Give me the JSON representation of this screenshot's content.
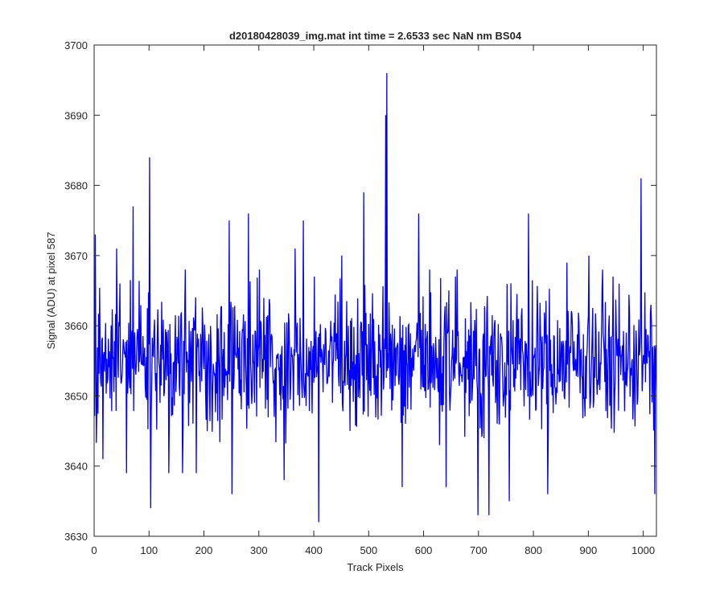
{
  "chart_data": {
    "type": "line",
    "title": "d20180428039_img.mat int time = 2.6533 sec  NaN nm BS04",
    "xlabel": "Track Pixels",
    "ylabel": "Signal (ADU) at pixel 587",
    "xlim": [
      0,
      1024
    ],
    "ylim": [
      3630,
      3700
    ],
    "xticks": [
      0,
      100,
      200,
      300,
      400,
      500,
      600,
      700,
      800,
      900,
      1000
    ],
    "yticks": [
      3630,
      3640,
      3650,
      3660,
      3670,
      3680,
      3690,
      3700
    ],
    "grid": false,
    "legend": "none",
    "series_color": "#0000ff",
    "baseline_mean": 3655,
    "noise_amplitude": 8,
    "num_points": 1024,
    "highlights": [
      {
        "x": 1,
        "y": 3673
      },
      {
        "x": 15,
        "y": 3641
      },
      {
        "x": 40,
        "y": 3671
      },
      {
        "x": 58,
        "y": 3639
      },
      {
        "x": 70,
        "y": 3677
      },
      {
        "x": 100,
        "y": 3684
      },
      {
        "x": 102,
        "y": 3634
      },
      {
        "x": 135,
        "y": 3639
      },
      {
        "x": 160,
        "y": 3639
      },
      {
        "x": 165,
        "y": 3668
      },
      {
        "x": 185,
        "y": 3639
      },
      {
        "x": 245,
        "y": 3675
      },
      {
        "x": 250,
        "y": 3636
      },
      {
        "x": 280,
        "y": 3676
      },
      {
        "x": 300,
        "y": 3668
      },
      {
        "x": 345,
        "y": 3638
      },
      {
        "x": 365,
        "y": 3671
      },
      {
        "x": 380,
        "y": 3675
      },
      {
        "x": 400,
        "y": 3667
      },
      {
        "x": 408,
        "y": 3632
      },
      {
        "x": 450,
        "y": 3670
      },
      {
        "x": 490,
        "y": 3679
      },
      {
        "x": 530,
        "y": 3690
      },
      {
        "x": 532,
        "y": 3696
      },
      {
        "x": 560,
        "y": 3637
      },
      {
        "x": 590,
        "y": 3676
      },
      {
        "x": 610,
        "y": 3668
      },
      {
        "x": 640,
        "y": 3637
      },
      {
        "x": 660,
        "y": 3668
      },
      {
        "x": 698,
        "y": 3633
      },
      {
        "x": 718,
        "y": 3633
      },
      {
        "x": 755,
        "y": 3635
      },
      {
        "x": 790,
        "y": 3676
      },
      {
        "x": 825,
        "y": 3636
      },
      {
        "x": 860,
        "y": 3669
      },
      {
        "x": 900,
        "y": 3670
      },
      {
        "x": 925,
        "y": 3668
      },
      {
        "x": 955,
        "y": 3666
      },
      {
        "x": 995,
        "y": 3681
      },
      {
        "x": 1020,
        "y": 3636
      }
    ]
  }
}
